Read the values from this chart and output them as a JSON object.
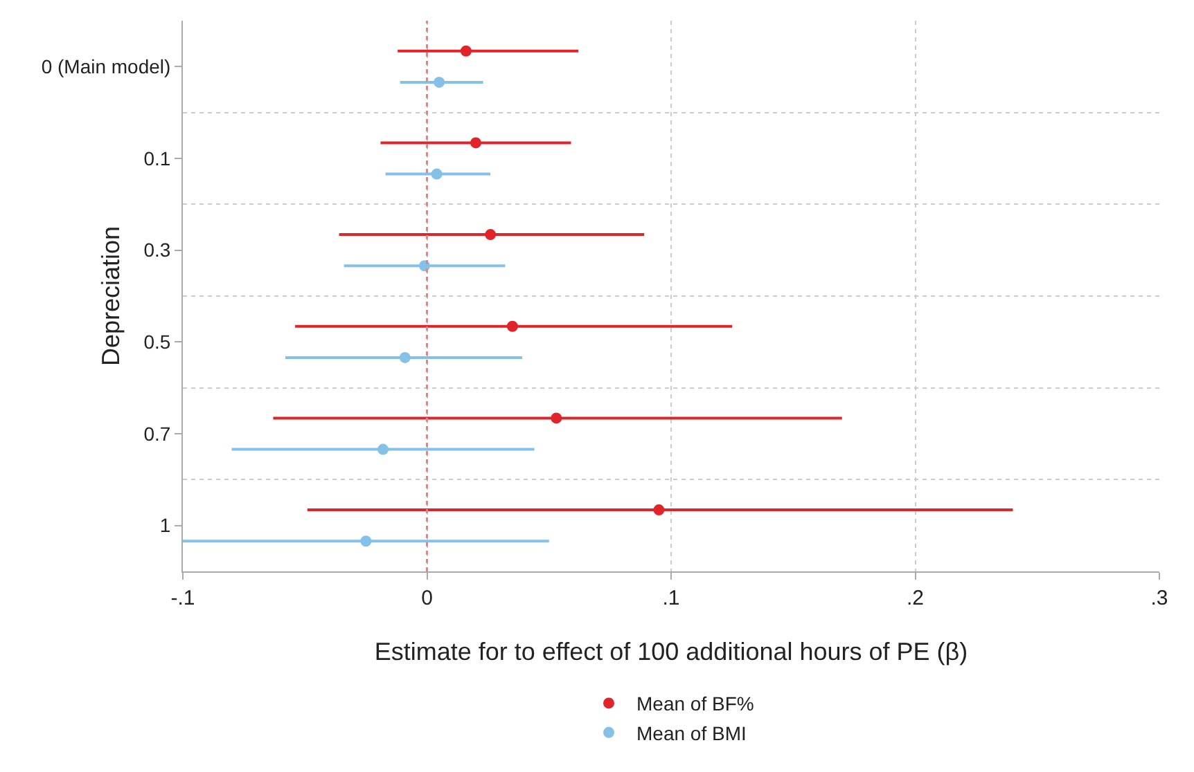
{
  "chart_data": {
    "type": "scatter",
    "orientation": "horizontal",
    "xlabel": "Estimate for to effect of 100 additional hours of PE (β)",
    "ylabel": "Depreciation",
    "categories": [
      "0 (Main model)",
      "0.1",
      "0.3",
      "0.5",
      "0.7",
      "1"
    ],
    "series": [
      {
        "name": "Mean of BF%",
        "color": "#e0242a",
        "values": [
          0.016,
          0.02,
          0.026,
          0.035,
          0.053,
          0.095
        ],
        "errors": [
          [
            -0.012,
            0.062
          ],
          [
            -0.019,
            0.059
          ],
          [
            -0.036,
            0.089
          ],
          [
            -0.054,
            0.125
          ],
          [
            -0.063,
            0.17
          ],
          [
            -0.049,
            0.24
          ]
        ]
      },
      {
        "name": "Mean of BMI",
        "color": "#85c0e9",
        "values": [
          0.005,
          0.004,
          -0.001,
          -0.009,
          -0.018,
          -0.025
        ],
        "errors": [
          [
            -0.011,
            0.023
          ],
          [
            -0.017,
            0.026
          ],
          [
            -0.034,
            0.032
          ],
          [
            -0.058,
            0.039
          ],
          [
            -0.08,
            0.044
          ],
          [
            -0.1,
            0.05
          ]
        ]
      }
    ],
    "xlim": [
      -0.1,
      0.3
    ],
    "xticks": [
      {
        "value": -0.1,
        "label": "-.1"
      },
      0,
      {
        "value": 0.1,
        "label": ".1"
      },
      {
        "value": 0.2,
        "label": ".2"
      },
      {
        "value": 0.3,
        "label": ".3"
      }
    ],
    "ref_lines": [
      {
        "axis": "x",
        "value": 0,
        "color": "#f08080",
        "line_style": "dotted"
      }
    ],
    "grid": true,
    "legend": "bottom",
    "marker": "circle"
  }
}
